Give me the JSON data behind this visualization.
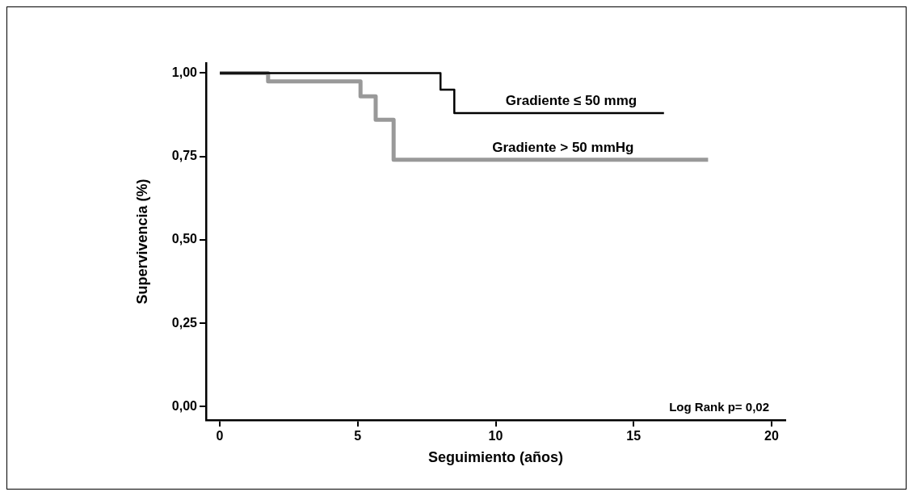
{
  "chart_data": {
    "type": "step",
    "xlabel": "Seguimiento (años)",
    "ylabel": "Supervivencia (%)",
    "series": [
      {
        "name": "Gradiente ≤ 50 mmg",
        "color": "#000000",
        "x": [
          0,
          8.0,
          8.5,
          16.1
        ],
        "values": [
          1.0,
          0.95,
          0.88,
          0.88
        ]
      },
      {
        "name": "Gradiente > 50 mmHg",
        "color": "#999999",
        "x": [
          0,
          1.75,
          5.1,
          5.65,
          6.3,
          17.7
        ],
        "values": [
          1.0,
          0.975,
          0.93,
          0.86,
          0.74,
          0.74
        ]
      }
    ],
    "xlim": [
      -0.5,
      20.5
    ],
    "xticks": [
      0,
      5,
      10,
      15,
      20
    ],
    "ylim": [
      -0.04,
      1.03
    ],
    "yticks": [
      {
        "value": 0,
        "label": "0,00"
      },
      {
        "value": 0.25,
        "label": "0,25"
      },
      {
        "value": 0.5,
        "label": "0,50"
      },
      {
        "value": 0.75,
        "label": "0,75"
      },
      {
        "value": 1,
        "label": "1,00"
      }
    ],
    "grid": false,
    "legend": false,
    "marker": "none",
    "line_style": "solid",
    "annotations": [
      "Log Rank p= 0,02"
    ]
  }
}
